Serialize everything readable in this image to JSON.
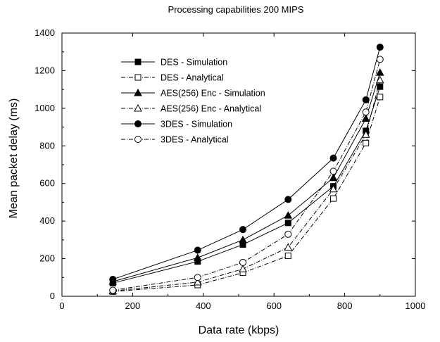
{
  "chart_data": {
    "type": "line",
    "title": "Processing capabilities 200 MIPS",
    "xlabel": "Data rate (kbps)",
    "ylabel": "Mean packet delay (ms)",
    "xlim": [
      0,
      1000
    ],
    "ylim": [
      0,
      1400
    ],
    "xticks": [
      0,
      200,
      400,
      600,
      800,
      1000
    ],
    "yticks": [
      0,
      200,
      400,
      600,
      800,
      1000,
      1200,
      1400
    ],
    "grid": false,
    "legend_position": "top-left",
    "series": [
      {
        "name": "DES - Simulation",
        "marker": "filled-square",
        "line": "solid",
        "x": [
          144,
          384,
          512,
          640,
          768,
          860,
          900
        ],
        "y": [
          70,
          185,
          275,
          390,
          585,
          880,
          1115
        ]
      },
      {
        "name": "DES - Analytical",
        "marker": "open-square",
        "line": "dashdot",
        "x": [
          144,
          384,
          512,
          640,
          768,
          860,
          900
        ],
        "y": [
          25,
          60,
          125,
          215,
          520,
          815,
          1060
        ]
      },
      {
        "name": "AES(256) Enc - Simulation",
        "marker": "filled-triangle",
        "line": "solid",
        "x": [
          144,
          384,
          512,
          640,
          768,
          860,
          900
        ],
        "y": [
          78,
          205,
          300,
          430,
          630,
          945,
          1190
        ]
      },
      {
        "name": "AES(256) Enc - Analytical",
        "marker": "open-triangle",
        "line": "dashdot",
        "x": [
          144,
          384,
          512,
          640,
          768,
          860,
          900
        ],
        "y": [
          28,
          75,
          145,
          260,
          570,
          860,
          1150
        ]
      },
      {
        "name": "3DES - Simulation",
        "marker": "filled-circle",
        "line": "solid",
        "x": [
          144,
          384,
          512,
          640,
          768,
          860,
          900
        ],
        "y": [
          90,
          245,
          355,
          515,
          735,
          1045,
          1325
        ]
      },
      {
        "name": "3DES - Analytical",
        "marker": "open-circle",
        "line": "dashdot",
        "x": [
          144,
          384,
          512,
          640,
          768,
          860,
          900
        ],
        "y": [
          32,
          100,
          180,
          330,
          665,
          980,
          1260
        ]
      }
    ]
  }
}
